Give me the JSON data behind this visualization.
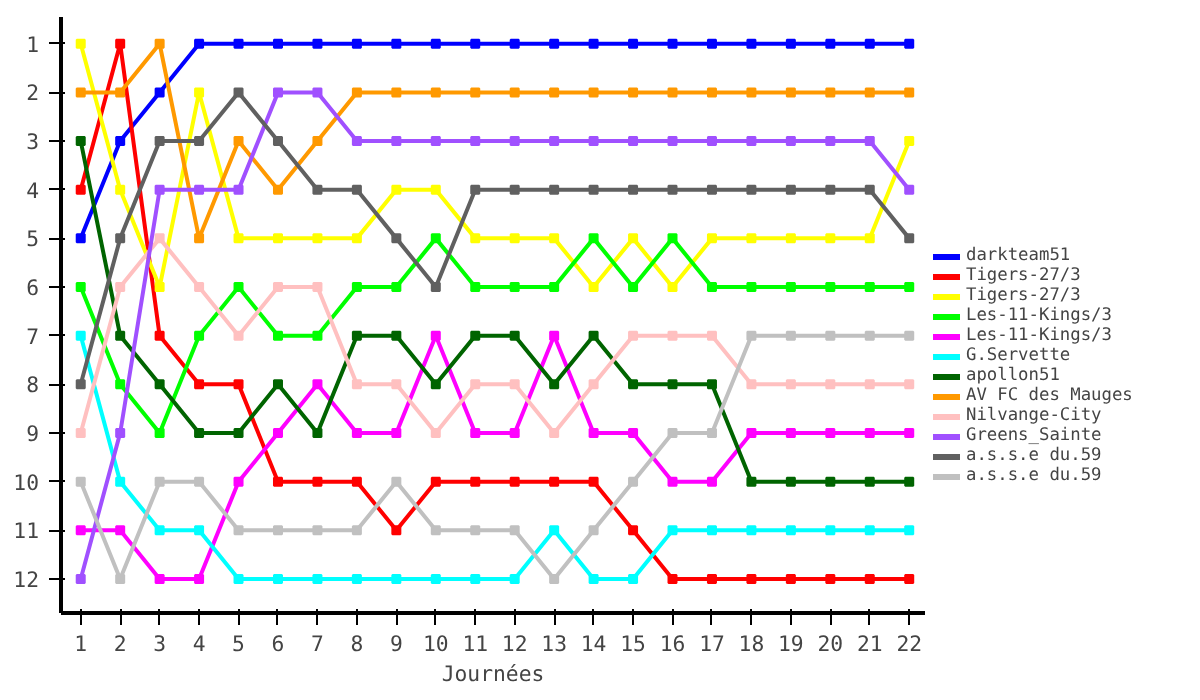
{
  "chart_data": {
    "type": "line",
    "xlabel": "Journées",
    "x": [
      1,
      2,
      3,
      4,
      5,
      6,
      7,
      8,
      9,
      10,
      11,
      12,
      13,
      14,
      15,
      16,
      17,
      18,
      19,
      20,
      21,
      22
    ],
    "xlim": [
      0.5,
      22.4
    ],
    "xticks": [
      1,
      2,
      3,
      4,
      5,
      6,
      7,
      8,
      9,
      10,
      11,
      12,
      13,
      14,
      15,
      16,
      17,
      18,
      19,
      20,
      21,
      22
    ],
    "ylim": [
      12.7,
      0.45
    ],
    "yticks": [
      1,
      2,
      3,
      4,
      5,
      6,
      7,
      8,
      9,
      10,
      11,
      12
    ],
    "grid": false,
    "legend": "right",
    "marker": "square",
    "line_style": "solid",
    "series": [
      {
        "name": "darkteam51",
        "color": "#0000ff",
        "values": [
          5,
          3,
          2,
          1,
          1,
          1,
          1,
          1,
          1,
          1,
          1,
          1,
          1,
          1,
          1,
          1,
          1,
          1,
          1,
          1,
          1,
          1
        ]
      },
      {
        "name": "Tigers-27/3",
        "color": "#ff0000",
        "values": [
          4,
          1,
          7,
          8,
          8,
          10,
          10,
          10,
          11,
          10,
          10,
          10,
          10,
          10,
          11,
          12,
          12,
          12,
          12,
          12,
          12,
          12
        ]
      },
      {
        "name": "Tigers-27/3",
        "color": "#ffff00",
        "values": [
          1,
          4,
          6,
          2,
          5,
          5,
          5,
          5,
          4,
          4,
          5,
          5,
          5,
          6,
          5,
          6,
          5,
          5,
          5,
          5,
          5,
          3
        ]
      },
      {
        "name": "Les-11-Kings/3",
        "color": "#00ff00",
        "values": [
          6,
          8,
          9,
          7,
          6,
          7,
          7,
          6,
          6,
          5,
          6,
          6,
          6,
          5,
          6,
          5,
          6,
          6,
          6,
          6,
          6,
          6
        ]
      },
      {
        "name": "Les-11-Kings/3",
        "color": "#ff00ff",
        "values": [
          11,
          11,
          12,
          12,
          10,
          9,
          8,
          9,
          9,
          7,
          9,
          9,
          7,
          9,
          9,
          10,
          10,
          9,
          9,
          9,
          9,
          9
        ]
      },
      {
        "name": "G.Servette",
        "color": "#00ffff",
        "values": [
          7,
          10,
          11,
          11,
          12,
          12,
          12,
          12,
          12,
          12,
          12,
          12,
          11,
          12,
          12,
          11,
          11,
          11,
          11,
          11,
          11,
          11
        ]
      },
      {
        "name": "apollon51",
        "color": "#006400",
        "values": [
          3,
          7,
          8,
          9,
          9,
          8,
          9,
          7,
          7,
          8,
          7,
          7,
          8,
          7,
          8,
          8,
          8,
          10,
          10,
          10,
          10,
          10
        ]
      },
      {
        "name": "AV FC des Mauges",
        "color": "#ff9900",
        "values": [
          2,
          2,
          1,
          5,
          3,
          4,
          3,
          2,
          2,
          2,
          2,
          2,
          2,
          2,
          2,
          2,
          2,
          2,
          2,
          2,
          2,
          2
        ]
      },
      {
        "name": "Nilvange-City",
        "color": "#ffc0c0",
        "values": [
          9,
          6,
          5,
          6,
          7,
          6,
          6,
          8,
          8,
          9,
          8,
          8,
          9,
          8,
          7,
          7,
          7,
          8,
          8,
          8,
          8,
          8
        ]
      },
      {
        "name": "Greens_Sainte",
        "color": "#a050ff",
        "values": [
          12,
          9,
          4,
          4,
          4,
          2,
          2,
          3,
          3,
          3,
          3,
          3,
          3,
          3,
          3,
          3,
          3,
          3,
          3,
          3,
          3,
          4
        ]
      },
      {
        "name": "a.s.s.e du.59",
        "color": "#606060",
        "values": [
          8,
          5,
          3,
          3,
          2,
          3,
          4,
          4,
          5,
          6,
          4,
          4,
          4,
          4,
          4,
          4,
          4,
          4,
          4,
          4,
          4,
          5
        ]
      },
      {
        "name": "a.s.s.e du.59",
        "color": "#c0c0c0",
        "values": [
          10,
          12,
          10,
          10,
          11,
          11,
          11,
          11,
          10,
          11,
          11,
          11,
          12,
          11,
          10,
          9,
          9,
          7,
          7,
          7,
          7,
          7
        ]
      }
    ]
  }
}
